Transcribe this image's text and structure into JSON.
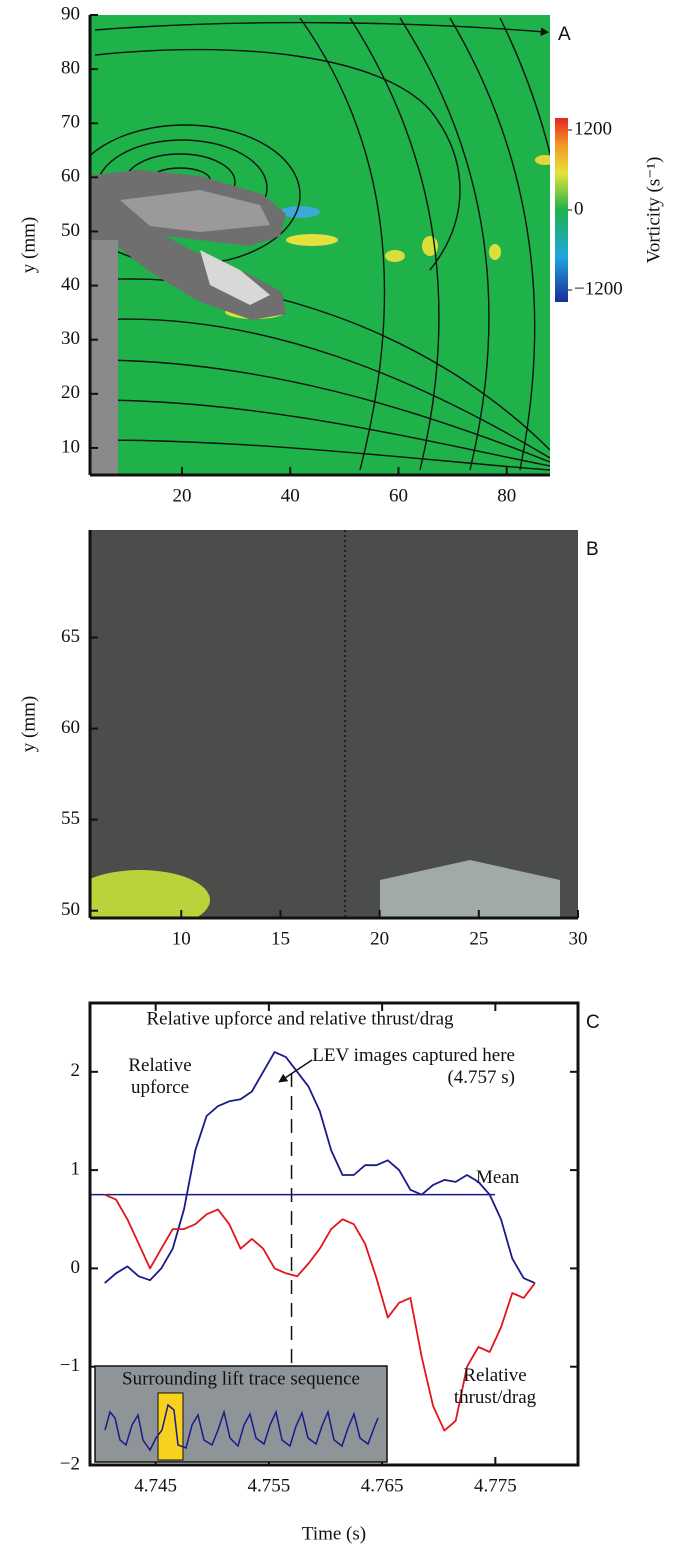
{
  "chart_data": [
    {
      "type": "field",
      "panel_label": "A",
      "y_label": "y (mm)",
      "xlim": [
        3,
        88
      ],
      "ylim": [
        5,
        90
      ],
      "xticks": [
        20,
        40,
        60,
        80
      ],
      "yticks": [
        10,
        20,
        30,
        40,
        50,
        60,
        70,
        80,
        90
      ],
      "colorbar": {
        "label": "Vorticity (s⁻¹)",
        "clim": [
          -1380,
          1380
        ],
        "ticks": [
          1200,
          0,
          {
            "value": -1200,
            "label": "−1200"
          }
        ]
      }
    },
    {
      "type": "field",
      "panel_label": "B",
      "y_label": "y (mm)",
      "xlim": [
        5.4,
        30
      ],
      "ylim": [
        49.6,
        70.9
      ],
      "xticks": [
        10,
        15,
        20,
        25,
        30
      ],
      "yticks": [
        50,
        55,
        60,
        65
      ]
    },
    {
      "type": "line",
      "panel_label": "C",
      "title": "Relative upforce and relative thrust/drag",
      "x_label": "Time (s)",
      "x": [
        4.7405,
        4.7415,
        4.7425,
        4.7435,
        4.7445,
        4.7455,
        4.7465,
        4.7475,
        4.7485,
        4.7495,
        4.7505,
        4.7515,
        4.7525,
        4.7535,
        4.7545,
        4.7555,
        4.7565,
        4.7575,
        4.7585,
        4.7595,
        4.7605,
        4.7615,
        4.7625,
        4.7635,
        4.7645,
        4.7655,
        4.7665,
        4.7675,
        4.7685,
        4.7695,
        4.7705,
        4.7715,
        4.7725,
        4.7735,
        4.7745,
        4.7755,
        4.7765,
        4.7775,
        4.7785
      ],
      "series": [
        {
          "name": "Relative upforce",
          "color": "#1a1a8c",
          "values": [
            -0.15,
            -0.05,
            0.02,
            -0.08,
            -0.12,
            0.0,
            0.2,
            0.6,
            1.2,
            1.55,
            1.65,
            1.7,
            1.72,
            1.8,
            2.0,
            2.2,
            2.15,
            2.0,
            1.85,
            1.6,
            1.2,
            0.95,
            0.95,
            1.05,
            1.05,
            1.1,
            1.0,
            0.8,
            0.75,
            0.85,
            0.9,
            0.88,
            0.95,
            0.88,
            0.75,
            0.5,
            0.1,
            -0.1,
            -0.15
          ]
        },
        {
          "name": "Relative thrust/drag",
          "color": "#e3141b",
          "values": [
            0.75,
            0.7,
            0.5,
            0.25,
            0.0,
            0.2,
            0.4,
            0.4,
            0.45,
            0.55,
            0.6,
            0.45,
            0.2,
            0.3,
            0.2,
            0.0,
            -0.05,
            -0.08,
            0.05,
            0.2,
            0.4,
            0.5,
            0.45,
            0.25,
            -0.1,
            -0.5,
            -0.35,
            -0.3,
            -0.9,
            -1.4,
            -1.65,
            -1.55,
            -1.0,
            -0.8,
            -0.85,
            -0.6,
            -0.25,
            -0.3,
            -0.15
          ]
        }
      ],
      "mean": {
        "value": 0.75,
        "label": "Mean"
      },
      "marker": {
        "value": 4.757,
        "label": "LEV images captured here (4.757 s)"
      },
      "inset_title": "Surrounding lift trace sequence",
      "xlim": [
        4.7392,
        4.7823
      ],
      "ylim": [
        -2,
        2.7
      ],
      "xticks": [
        4.745,
        4.755,
        4.765,
        4.775
      ],
      "yticks": [
        {
          "value": -2,
          "label": "−2"
        },
        {
          "value": -1,
          "label": "−1"
        },
        0,
        1,
        2
      ]
    }
  ]
}
